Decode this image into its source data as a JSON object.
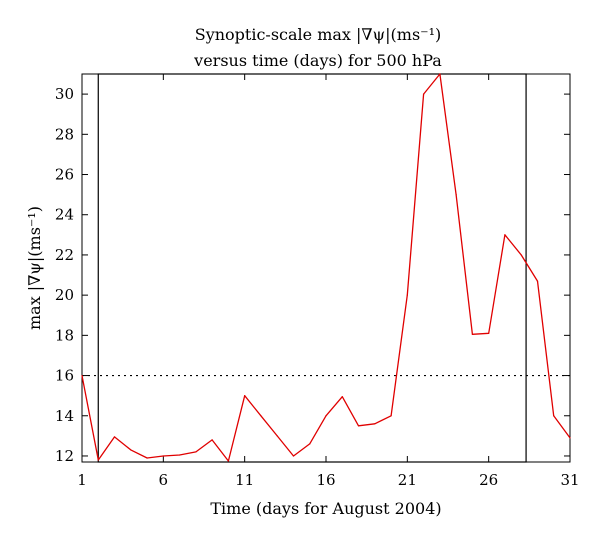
{
  "chart_data": {
    "type": "line",
    "title": "Synoptic-scale max |∇ψ|(ms⁻¹)",
    "subtitle": "versus time (days) for 500 hPa",
    "xlabel": "Time (days for August 2004)",
    "ylabel": "max |∇ψ|(ms⁻¹)",
    "xlim": [
      1,
      31
    ],
    "ylim": [
      11.7,
      31
    ],
    "xticks": [
      1,
      6,
      11,
      16,
      21,
      26,
      31
    ],
    "yticks": [
      12,
      14,
      16,
      18,
      20,
      22,
      24,
      26,
      28,
      30
    ],
    "grid": false,
    "series_color": "#e00000",
    "x": [
      1,
      2,
      3,
      4,
      5,
      6,
      7,
      8,
      9,
      10,
      11,
      12,
      13,
      14,
      15,
      16,
      17,
      18,
      19,
      20,
      21,
      22,
      23,
      24,
      25,
      26,
      27,
      28,
      29,
      30,
      31
    ],
    "values": [
      16.0,
      11.8,
      12.95,
      12.3,
      11.9,
      12.0,
      12.05,
      12.2,
      12.8,
      11.75,
      15.0,
      14.0,
      13.0,
      12.0,
      12.6,
      14.0,
      14.95,
      13.5,
      13.6,
      14.0,
      20.0,
      30.0,
      31.0,
      25.0,
      18.05,
      18.1,
      23.0,
      22.0,
      20.7,
      14.0,
      12.9
    ],
    "threshold": 16,
    "highlight_x_range": [
      2,
      28.3
    ]
  }
}
